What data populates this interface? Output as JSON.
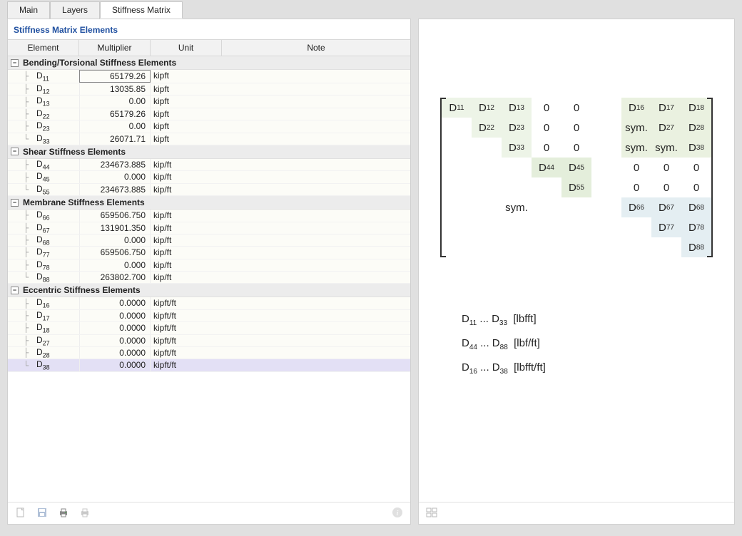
{
  "tabs": [
    {
      "label": "Main",
      "active": false
    },
    {
      "label": "Layers",
      "active": false
    },
    {
      "label": "Stiffness Matrix",
      "active": true
    }
  ],
  "panel_title": "Stiffness Matrix Elements",
  "columns": {
    "element": "Element",
    "multiplier": "Multiplier",
    "unit": "Unit",
    "note": "Note"
  },
  "groups": [
    {
      "title": "Bending/Torsional Stiffness Elements",
      "rows": [
        {
          "elem": "D",
          "sub": "11",
          "mult": "65179.26",
          "unit": "kipft",
          "first": true
        },
        {
          "elem": "D",
          "sub": "12",
          "mult": "13035.85",
          "unit": "kipft"
        },
        {
          "elem": "D",
          "sub": "13",
          "mult": "0.00",
          "unit": "kipft"
        },
        {
          "elem": "D",
          "sub": "22",
          "mult": "65179.26",
          "unit": "kipft"
        },
        {
          "elem": "D",
          "sub": "23",
          "mult": "0.00",
          "unit": "kipft"
        },
        {
          "elem": "D",
          "sub": "33",
          "mult": "26071.71",
          "unit": "kipft"
        }
      ]
    },
    {
      "title": "Shear Stiffness Elements",
      "rows": [
        {
          "elem": "D",
          "sub": "44",
          "mult": "234673.885",
          "unit": "kip/ft"
        },
        {
          "elem": "D",
          "sub": "45",
          "mult": "0.000",
          "unit": "kip/ft"
        },
        {
          "elem": "D",
          "sub": "55",
          "mult": "234673.885",
          "unit": "kip/ft"
        }
      ]
    },
    {
      "title": "Membrane Stiffness Elements",
      "rows": [
        {
          "elem": "D",
          "sub": "66",
          "mult": "659506.750",
          "unit": "kip/ft"
        },
        {
          "elem": "D",
          "sub": "67",
          "mult": "131901.350",
          "unit": "kip/ft"
        },
        {
          "elem": "D",
          "sub": "68",
          "mult": "0.000",
          "unit": "kip/ft"
        },
        {
          "elem": "D",
          "sub": "77",
          "mult": "659506.750",
          "unit": "kip/ft"
        },
        {
          "elem": "D",
          "sub": "78",
          "mult": "0.000",
          "unit": "kip/ft"
        },
        {
          "elem": "D",
          "sub": "88",
          "mult": "263802.700",
          "unit": "kip/ft"
        }
      ]
    },
    {
      "title": "Eccentric Stiffness Elements",
      "rows": [
        {
          "elem": "D",
          "sub": "16",
          "mult": "0.0000",
          "unit": "kipft/ft"
        },
        {
          "elem": "D",
          "sub": "17",
          "mult": "0.0000",
          "unit": "kipft/ft"
        },
        {
          "elem": "D",
          "sub": "18",
          "mult": "0.0000",
          "unit": "kipft/ft"
        },
        {
          "elem": "D",
          "sub": "27",
          "mult": "0.0000",
          "unit": "kipft/ft"
        },
        {
          "elem": "D",
          "sub": "28",
          "mult": "0.0000",
          "unit": "kipft/ft"
        },
        {
          "elem": "D",
          "sub": "38",
          "mult": "0.0000",
          "unit": "kipft/ft",
          "selected": true
        }
      ]
    }
  ],
  "colors": {
    "block_bending": "#edf4e7",
    "block_shear": "#e4eedb",
    "block_membrane": "#e4eef2",
    "block_eccentric": "#eaf1e0"
  },
  "matrix": {
    "rows": 8,
    "cols": 9,
    "cells": [
      {
        "r": 0,
        "c": 0,
        "t": "D",
        "s": "11",
        "bg": "block_bending"
      },
      {
        "r": 0,
        "c": 1,
        "t": "D",
        "s": "12",
        "bg": "block_bending"
      },
      {
        "r": 0,
        "c": 2,
        "t": "D",
        "s": "13",
        "bg": "block_bending"
      },
      {
        "r": 0,
        "c": 3,
        "t": "0"
      },
      {
        "r": 0,
        "c": 4,
        "t": "0"
      },
      {
        "r": 0,
        "c": 6,
        "t": "D",
        "s": "16",
        "bg": "block_eccentric"
      },
      {
        "r": 0,
        "c": 7,
        "t": "D",
        "s": "17",
        "bg": "block_eccentric"
      },
      {
        "r": 0,
        "c": 8,
        "t": "D",
        "s": "18",
        "bg": "block_eccentric"
      },
      {
        "r": 1,
        "c": 1,
        "t": "D",
        "s": "22",
        "bg": "block_bending"
      },
      {
        "r": 1,
        "c": 2,
        "t": "D",
        "s": "23",
        "bg": "block_bending"
      },
      {
        "r": 1,
        "c": 3,
        "t": "0"
      },
      {
        "r": 1,
        "c": 4,
        "t": "0"
      },
      {
        "r": 1,
        "c": 6,
        "t": "sym.",
        "bg": "block_eccentric"
      },
      {
        "r": 1,
        "c": 7,
        "t": "D",
        "s": "27",
        "bg": "block_eccentric"
      },
      {
        "r": 1,
        "c": 8,
        "t": "D",
        "s": "28",
        "bg": "block_eccentric"
      },
      {
        "r": 2,
        "c": 2,
        "t": "D",
        "s": "33",
        "bg": "block_bending"
      },
      {
        "r": 2,
        "c": 3,
        "t": "0"
      },
      {
        "r": 2,
        "c": 4,
        "t": "0"
      },
      {
        "r": 2,
        "c": 6,
        "t": "sym.",
        "bg": "block_eccentric"
      },
      {
        "r": 2,
        "c": 7,
        "t": "sym.",
        "bg": "block_eccentric"
      },
      {
        "r": 2,
        "c": 8,
        "t": "D",
        "s": "38",
        "bg": "block_eccentric"
      },
      {
        "r": 3,
        "c": 3,
        "t": "D",
        "s": "44",
        "bg": "block_shear"
      },
      {
        "r": 3,
        "c": 4,
        "t": "D",
        "s": "45",
        "bg": "block_shear"
      },
      {
        "r": 3,
        "c": 6,
        "t": "0"
      },
      {
        "r": 3,
        "c": 7,
        "t": "0"
      },
      {
        "r": 3,
        "c": 8,
        "t": "0"
      },
      {
        "r": 4,
        "c": 4,
        "t": "D",
        "s": "55",
        "bg": "block_shear"
      },
      {
        "r": 4,
        "c": 6,
        "t": "0"
      },
      {
        "r": 4,
        "c": 7,
        "t": "0"
      },
      {
        "r": 4,
        "c": 8,
        "t": "0"
      },
      {
        "r": 5,
        "c": 2,
        "t": "sym."
      },
      {
        "r": 5,
        "c": 6,
        "t": "D",
        "s": "66",
        "bg": "block_membrane"
      },
      {
        "r": 5,
        "c": 7,
        "t": "D",
        "s": "67",
        "bg": "block_membrane"
      },
      {
        "r": 5,
        "c": 8,
        "t": "D",
        "s": "68",
        "bg": "block_membrane"
      },
      {
        "r": 6,
        "c": 7,
        "t": "D",
        "s": "77",
        "bg": "block_membrane"
      },
      {
        "r": 6,
        "c": 8,
        "t": "D",
        "s": "78",
        "bg": "block_membrane"
      },
      {
        "r": 7,
        "c": 8,
        "t": "D",
        "s": "88",
        "bg": "block_membrane"
      }
    ]
  },
  "legend": [
    {
      "from": "11",
      "to": "33",
      "unit": "[lbfft]"
    },
    {
      "from": "44",
      "to": "88",
      "unit": "[lbf/ft]"
    },
    {
      "from": "16",
      "to": "38",
      "unit": "[lbfft/ft]"
    }
  ],
  "toolbar_left": [
    {
      "name": "new-icon",
      "enabled": false
    },
    {
      "name": "save-icon",
      "enabled": false
    },
    {
      "name": "print-icon",
      "enabled": true
    },
    {
      "name": "print2-icon",
      "enabled": false
    }
  ],
  "toolbar_left_info": {
    "name": "info-icon",
    "enabled": false
  },
  "toolbar_right": [
    {
      "name": "layout-icon",
      "enabled": false
    }
  ]
}
